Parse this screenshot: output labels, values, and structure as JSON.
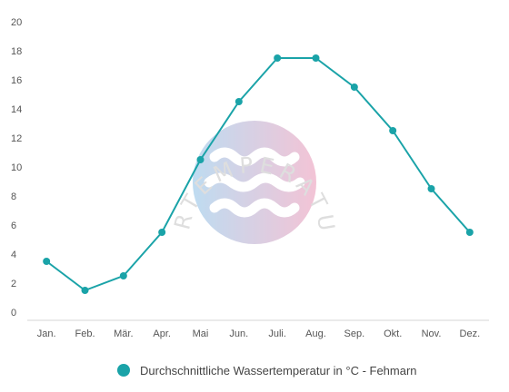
{
  "chart_data": {
    "type": "line",
    "categories": [
      "Jan.",
      "Feb.",
      "Mär.",
      "Apr.",
      "Mai",
      "Jun.",
      "Juli.",
      "Aug.",
      "Sep.",
      "Okt.",
      "Nov.",
      "Dez."
    ],
    "series": [
      {
        "name": "Durchschnittliche Wassertemperatur in °C - Fehmarn",
        "values": [
          3.5,
          1.5,
          2.5,
          5.5,
          10.5,
          14.5,
          17.5,
          17.5,
          15.5,
          12.5,
          8.5,
          5.5
        ],
        "color": "#1aa3a8"
      }
    ],
    "ylim": [
      0,
      20
    ],
    "yticks": [
      0,
      2,
      4,
      6,
      8,
      10,
      12,
      14,
      16,
      18,
      20
    ],
    "xlabel": "",
    "ylabel": "",
    "grid": false,
    "legend": "bottom-center"
  },
  "watermark": {
    "text": "WASSERTEMPERATUR.ORG"
  }
}
